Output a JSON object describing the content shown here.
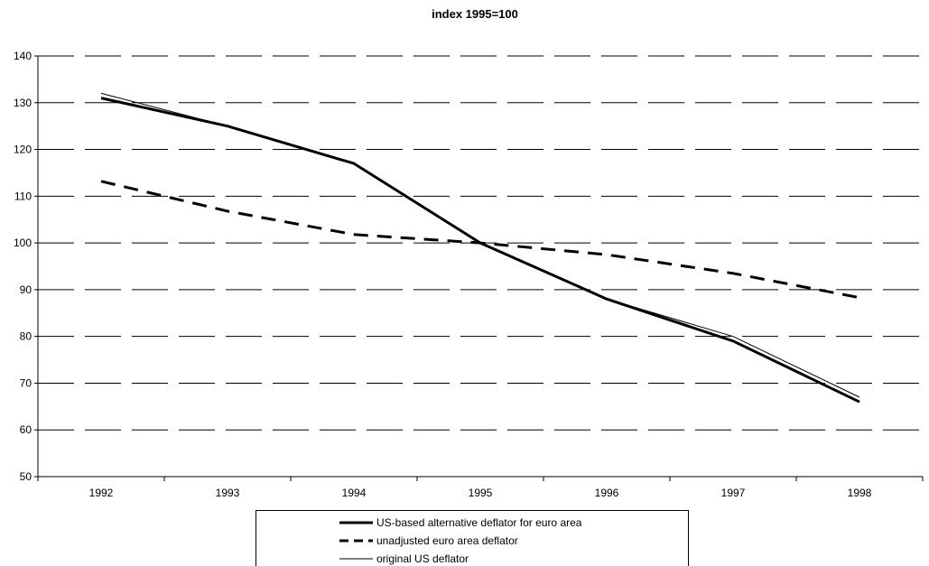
{
  "chart_data": {
    "type": "line",
    "title": "index 1995=100",
    "xlabel": "",
    "ylabel": "",
    "categories": [
      "1992",
      "1993",
      "1994",
      "1995",
      "1996",
      "1997",
      "1998"
    ],
    "ylim": [
      50,
      140
    ],
    "yticks": [
      50,
      60,
      70,
      80,
      90,
      100,
      110,
      120,
      130,
      140
    ],
    "grid": true,
    "grid_style": "dashed horizontal",
    "legend_position": "bottom",
    "series": [
      {
        "name": "US-based alternative deflator for euro area",
        "values": [
          131,
          125,
          117,
          100,
          88,
          79,
          66
        ],
        "color": "#000000",
        "style": "solid-thick"
      },
      {
        "name": "unadjusted euro area deflator",
        "values": [
          113.2,
          106.8,
          101.8,
          100,
          97.5,
          93.5,
          88.3
        ],
        "color": "#000000",
        "style": "dashed-thick"
      },
      {
        "name": "original US deflator",
        "values": [
          132,
          125,
          117,
          100,
          88,
          80,
          67
        ],
        "color": "#000000",
        "style": "solid-thin"
      }
    ]
  }
}
